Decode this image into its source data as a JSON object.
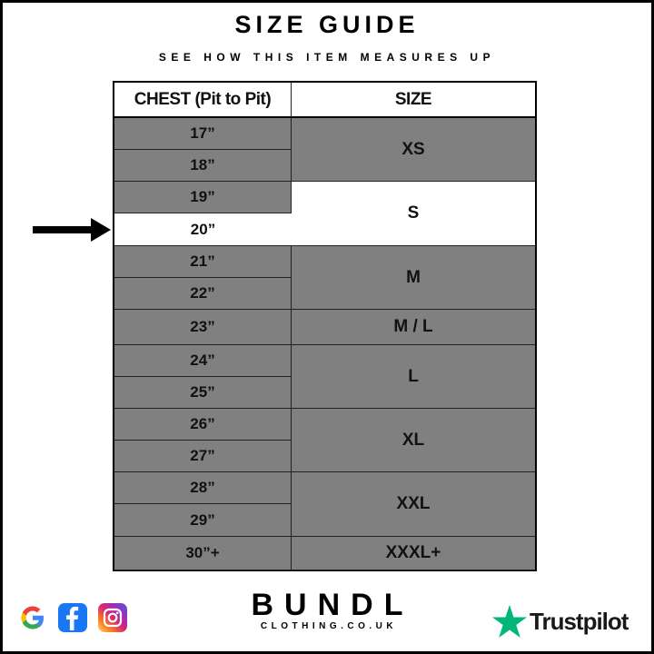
{
  "header": {
    "title": "SIZE GUIDE",
    "subtitle": "SEE HOW THIS ITEM MEASURES UP"
  },
  "table": {
    "columns": [
      "CHEST (Pit to Pit)",
      "SIZE"
    ],
    "chest_rows": [
      "17”",
      "18”",
      "19”",
      "20”",
      "21”",
      "22”",
      "23”",
      "24”",
      "25”",
      "26”",
      "27”",
      "28”",
      "29”",
      "30”+"
    ],
    "size_groups": [
      {
        "label": "XS",
        "rows": 2
      },
      {
        "label": "S",
        "rows": 2
      },
      {
        "label": "M",
        "rows": 2
      },
      {
        "label": "M / L",
        "rows": 1
      },
      {
        "label": "L",
        "rows": 2
      },
      {
        "label": "XL",
        "rows": 2
      },
      {
        "label": "XXL",
        "rows": 2
      },
      {
        "label": "XXXL+",
        "rows": 1
      }
    ],
    "highlighted_chest": "20”",
    "highlighted_size": "S",
    "colors": {
      "row_fill": "#808080",
      "highlight": "#ffffff"
    }
  },
  "footer": {
    "social_icons": [
      "google-icon",
      "facebook-icon",
      "instagram-icon"
    ],
    "brand": {
      "name": "BUNDL",
      "domain": "CLOTHING.CO.UK"
    },
    "trustpilot": {
      "label": "Trustpilot",
      "star_color": "#00b67a"
    }
  }
}
